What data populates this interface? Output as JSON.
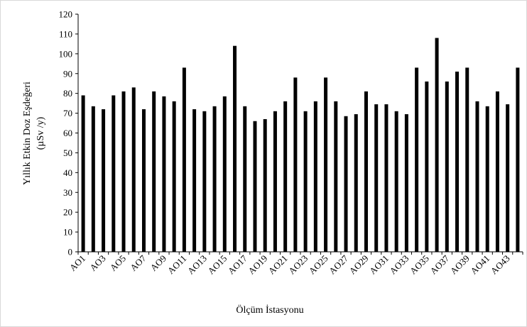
{
  "chart_data": {
    "type": "bar",
    "xlabel": "Ölçüm İstasyonu",
    "ylabel_line1": "Yıllık Etkin Doz Eşdeğeri",
    "ylabel_line2": "(µSv /y)",
    "ylim": [
      0,
      120
    ],
    "yticks": [
      0,
      10,
      20,
      30,
      40,
      50,
      60,
      70,
      80,
      90,
      100,
      110,
      120
    ],
    "categories": [
      "AO1",
      "AO2",
      "AO3",
      "AO4",
      "AO5",
      "AO6",
      "AO7",
      "AO8",
      "AO9",
      "AO10",
      "AO11",
      "AO12",
      "AO13",
      "AO14",
      "AO15",
      "AO16",
      "AO17",
      "AO18",
      "AO19",
      "AO20",
      "AO21",
      "AO22",
      "AO23",
      "AO24",
      "AO25",
      "AO26",
      "AO27",
      "AO28",
      "AO29",
      "AO30",
      "AO31",
      "AO32",
      "AO33",
      "AO34",
      "AO35",
      "AO36",
      "AO37",
      "AO38",
      "AO39",
      "AO40",
      "AO41",
      "AO42",
      "AO43",
      "AO44"
    ],
    "tick_labels_shown": [
      "AO1",
      "AO3",
      "AO5",
      "AO7",
      "AO9",
      "AO11",
      "AO13",
      "AO15",
      "AO17",
      "AO19",
      "AO21",
      "AO23",
      "AO25",
      "AO27",
      "AO29",
      "AO31",
      "AO33",
      "AO35",
      "AO37",
      "AO39",
      "AO41",
      "AO43"
    ],
    "values": [
      79,
      73.5,
      72,
      79,
      81,
      83,
      72,
      81,
      78.5,
      76,
      93,
      72,
      71,
      73.5,
      78.5,
      104,
      73.5,
      66,
      67,
      71,
      76,
      88,
      71,
      76,
      88,
      76,
      68.5,
      69.5,
      81,
      74.5,
      74.5,
      71,
      69.5,
      93,
      86,
      108,
      86,
      91,
      93,
      76,
      73.5,
      81,
      74.5,
      93
    ],
    "bar_color": "#000000",
    "grid": false,
    "legend": "none"
  }
}
